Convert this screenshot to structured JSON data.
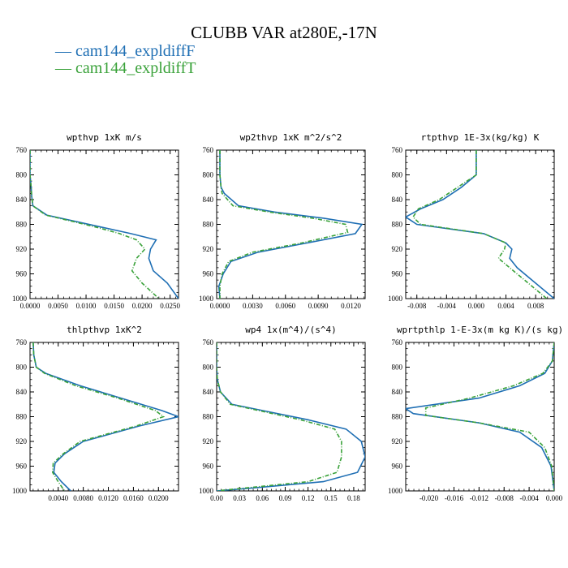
{
  "title": "CLUBB VAR at280E,-17N",
  "legend": [
    {
      "label": "— cam144_expldiffF",
      "color": "#1f6fb4"
    },
    {
      "label": "— cam144_expldiffT",
      "color": "#3aa23a"
    }
  ],
  "chart_data": [
    {
      "type": "line",
      "title": "wpthvp 1xK m/s",
      "xlim": [
        0,
        0.0265
      ],
      "ylim": [
        760,
        1000
      ],
      "xticks": [
        0,
        0.005,
        0.01,
        0.015,
        0.02,
        0.025
      ],
      "xtick_labels": [
        "0.0000",
        "0.0050",
        "0.0100",
        "0.0150",
        "0.0200",
        "0.0250"
      ],
      "yticks": [
        760,
        800,
        840,
        880,
        920,
        960,
        1000
      ],
      "ytick_labels": [
        "760",
        "800",
        "840",
        "880",
        "920",
        "960",
        "1000"
      ],
      "series": [
        {
          "name": "cam144_expldiffF",
          "color": "#1f6fb4",
          "dashed": false,
          "x": [
            0,
            0,
            0.0002,
            0.0003,
            0.0005,
            0.003,
            0.008,
            0.013,
            0.018,
            0.0225,
            0.0215,
            0.0212,
            0.022,
            0.0245,
            0.0265
          ],
          "y": [
            760,
            800,
            820,
            835,
            850,
            865,
            875,
            885,
            895,
            905,
            920,
            935,
            955,
            975,
            1000
          ]
        },
        {
          "name": "cam144_expldiffT",
          "color": "#3aa23a",
          "dashed": true,
          "x": [
            0,
            0,
            0.0002,
            0.0003,
            0.0005,
            0.0028,
            0.0075,
            0.012,
            0.016,
            0.019,
            0.0205,
            0.019,
            0.0182,
            0.02,
            0.023
          ],
          "y": [
            760,
            800,
            820,
            835,
            850,
            865,
            875,
            885,
            895,
            905,
            920,
            935,
            955,
            975,
            1000
          ]
        }
      ]
    },
    {
      "type": "line",
      "title": "wp2thvp 1xK m^2/s^2",
      "xlim": [
        -0.0003,
        0.0133
      ],
      "ylim": [
        760,
        1000
      ],
      "xticks": [
        0,
        0.003,
        0.006,
        0.009,
        0.012
      ],
      "xtick_labels": [
        "0.0000",
        "0.0030",
        "0.0060",
        "0.0090",
        "0.0120"
      ],
      "yticks": [
        760,
        800,
        840,
        880,
        920,
        960,
        1000
      ],
      "ytick_labels": [
        "760",
        "800",
        "840",
        "880",
        "920",
        "960",
        "1000"
      ],
      "series": [
        {
          "name": "cam144_expldiffF",
          "color": "#1f6fb4",
          "dashed": false,
          "x": [
            0,
            0,
            0.0001,
            0.0004,
            0.0017,
            0.005,
            0.0095,
            0.013,
            0.0124,
            0.008,
            0.0035,
            0.001,
            0.0003,
            -0.0001,
            0
          ],
          "y": [
            760,
            800,
            820,
            830,
            850,
            860,
            870,
            880,
            895,
            910,
            925,
            940,
            960,
            980,
            1000
          ]
        },
        {
          "name": "cam144_expldiffT",
          "color": "#3aa23a",
          "dashed": true,
          "x": [
            0,
            0,
            0.0001,
            0.0002,
            0.0012,
            0.0045,
            0.0085,
            0.0115,
            0.0117,
            0.0075,
            0.003,
            0.0008,
            0.0002,
            0,
            0
          ],
          "y": [
            760,
            800,
            820,
            830,
            850,
            860,
            870,
            880,
            893,
            910,
            925,
            940,
            960,
            980,
            1000
          ]
        }
      ]
    },
    {
      "type": "line",
      "title": "rtpthvp 1E-3x(kg/kg) K",
      "xlim": [
        -0.0095,
        0.0105
      ],
      "ylim": [
        760,
        1000
      ],
      "xticks": [
        -0.008,
        -0.004,
        0,
        0.004,
        0.008
      ],
      "xtick_labels": [
        "-0.008",
        "-0.004",
        "0.000",
        "0.004",
        "0.008"
      ],
      "yticks": [
        760,
        800,
        840,
        880,
        920,
        960,
        1000
      ],
      "ytick_labels": [
        "760",
        "800",
        "840",
        "880",
        "920",
        "960",
        "1000"
      ],
      "series": [
        {
          "name": "cam144_expldiffF",
          "color": "#1f6fb4",
          "dashed": false,
          "x": [
            0,
            0,
            -0.002,
            -0.0045,
            -0.0075,
            -0.0095,
            -0.008,
            0.001,
            0.004,
            0.0048,
            0.0045,
            0.0055,
            0.0075,
            0.0105
          ],
          "y": [
            760,
            800,
            820,
            840,
            855,
            868,
            880,
            895,
            910,
            920,
            935,
            950,
            970,
            1000
          ]
        },
        {
          "name": "cam144_expldiffT",
          "color": "#3aa23a",
          "dashed": true,
          "x": [
            0,
            0,
            -0.0025,
            -0.005,
            -0.0078,
            -0.0085,
            -0.0075,
            0.001,
            0.004,
            0.0038,
            0.003,
            0.0045,
            0.0065,
            0.0095
          ],
          "y": [
            760,
            800,
            820,
            840,
            855,
            868,
            880,
            895,
            910,
            920,
            935,
            950,
            970,
            1000
          ]
        }
      ]
    },
    {
      "type": "line",
      "title": "thlpthvp 1xK^2",
      "xlim": [
        -0.0005,
        0.0232
      ],
      "ylim": [
        760,
        1000
      ],
      "xticks": [
        0.004,
        0.008,
        0.012,
        0.016,
        0.02
      ],
      "xtick_labels": [
        "0.0040",
        "0.0080",
        "0.0120",
        "0.0160",
        "0.0200"
      ],
      "yticks": [
        760,
        800,
        840,
        880,
        920,
        960,
        1000
      ],
      "ytick_labels": [
        "760",
        "800",
        "840",
        "880",
        "920",
        "960",
        "1000"
      ],
      "series": [
        {
          "name": "cam144_expldiffF",
          "color": "#1f6fb4",
          "dashed": false,
          "x": [
            0,
            0.0001,
            0.0005,
            0.002,
            0.0075,
            0.014,
            0.0205,
            0.0232,
            0.017,
            0.008,
            0.005,
            0.0035,
            0.0033,
            0.0045,
            0.006
          ],
          "y": [
            760,
            780,
            800,
            810,
            830,
            850,
            870,
            880,
            895,
            920,
            940,
            955,
            970,
            985,
            1000
          ]
        },
        {
          "name": "cam144_expldiffT",
          "color": "#3aa23a",
          "dashed": true,
          "x": [
            0,
            0.0001,
            0.0005,
            0.0018,
            0.0068,
            0.0135,
            0.0195,
            0.0208,
            0.0165,
            0.0075,
            0.0048,
            0.0032,
            0.0031,
            0.004,
            0.005
          ],
          "y": [
            760,
            780,
            800,
            810,
            830,
            850,
            870,
            880,
            895,
            920,
            940,
            955,
            970,
            985,
            1000
          ]
        }
      ]
    },
    {
      "type": "line",
      "title": "wp4 1x(m^4)/(s^4)",
      "xlim": [
        0,
        0.195
      ],
      "ylim": [
        760,
        1000
      ],
      "xticks": [
        0,
        0.03,
        0.06,
        0.09,
        0.12,
        0.15,
        0.18
      ],
      "xtick_labels": [
        "0.00",
        "0.03",
        "0.06",
        "0.09",
        "0.12",
        "0.15",
        "0.18"
      ],
      "yticks": [
        760,
        800,
        840,
        880,
        920,
        960,
        1000
      ],
      "ytick_labels": [
        "760",
        "800",
        "840",
        "880",
        "920",
        "960",
        "1000"
      ],
      "series": [
        {
          "name": "cam144_expldiffF",
          "color": "#1f6fb4",
          "dashed": false,
          "x": [
            0,
            0,
            0.001,
            0.005,
            0.02,
            0.06,
            0.12,
            0.17,
            0.19,
            0.195,
            0.185,
            0.14,
            0.05,
            0
          ],
          "y": [
            760,
            800,
            820,
            840,
            860,
            870,
            885,
            900,
            920,
            945,
            970,
            985,
            995,
            1000
          ]
        },
        {
          "name": "cam144_expldiffT",
          "color": "#3aa23a",
          "dashed": true,
          "x": [
            0,
            0,
            0.001,
            0.005,
            0.018,
            0.055,
            0.11,
            0.155,
            0.164,
            0.164,
            0.158,
            0.12,
            0.04,
            0
          ],
          "y": [
            760,
            800,
            820,
            840,
            860,
            870,
            885,
            900,
            920,
            945,
            970,
            985,
            995,
            1000
          ]
        }
      ]
    },
    {
      "type": "line",
      "title": "wprtpthlp 1-E-3x(m kg K)/(s kg)",
      "xlim": [
        -0.0237,
        0
      ],
      "ylim": [
        760,
        1000
      ],
      "xticks": [
        -0.02,
        -0.016,
        -0.012,
        -0.008,
        -0.004,
        0
      ],
      "xtick_labels": [
        "-0.020",
        "-0.016",
        "-0.012",
        "-0.008",
        "-0.004",
        "0.000"
      ],
      "yticks": [
        760,
        800,
        840,
        880,
        920,
        960,
        1000
      ],
      "ytick_labels": [
        "760",
        "800",
        "840",
        "880",
        "920",
        "960",
        "1000"
      ],
      "series": [
        {
          "name": "cam144_expldiffF",
          "color": "#1f6fb4",
          "dashed": false,
          "x": [
            0,
            -0.0003,
            -0.0015,
            -0.0055,
            -0.012,
            -0.0237,
            -0.0225,
            -0.012,
            -0.0055,
            -0.002,
            -0.0005,
            0
          ],
          "y": [
            760,
            790,
            810,
            830,
            850,
            867,
            875,
            890,
            905,
            930,
            960,
            1000
          ]
        },
        {
          "name": "cam144_expldiffT",
          "color": "#3aa23a",
          "dashed": true,
          "x": [
            0,
            -0.0003,
            -0.0018,
            -0.0065,
            -0.0135,
            -0.0205,
            -0.0205,
            -0.012,
            -0.004,
            -0.0015,
            -0.0004,
            0
          ],
          "y": [
            760,
            790,
            810,
            830,
            850,
            866,
            878,
            890,
            905,
            930,
            960,
            1000
          ]
        }
      ]
    }
  ]
}
